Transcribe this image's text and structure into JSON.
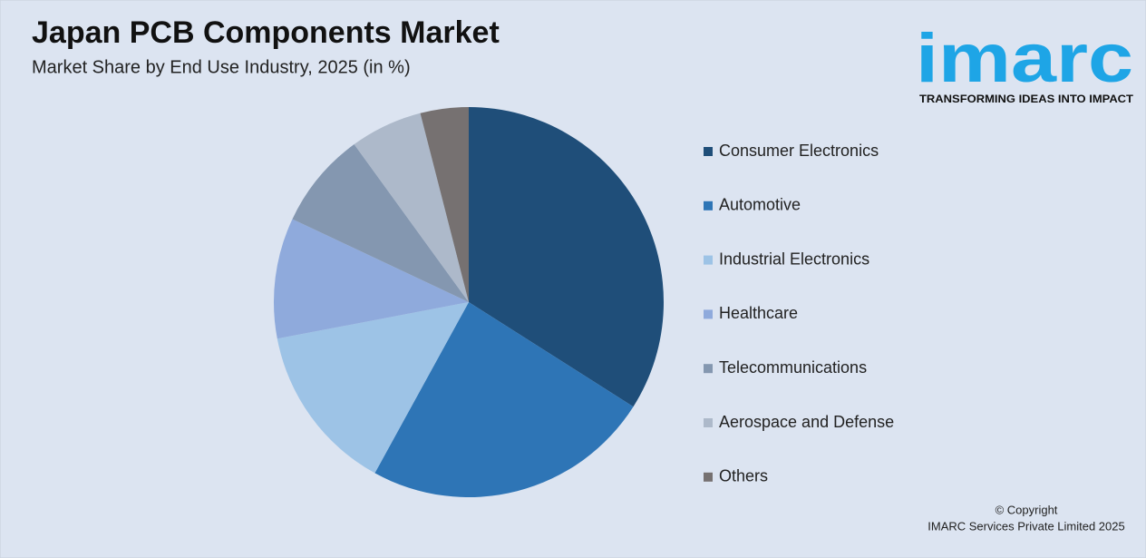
{
  "chart_data": {
    "type": "pie",
    "title": "Japan PCB Components Market",
    "subtitle": "Market Share by End Use Industry, 2025 (in %)",
    "categories": [
      "Consumer Electronics",
      "Automotive",
      "Industrial Electronics",
      "Healthcare",
      "Telecommunications",
      "Aerospace and Defense",
      "Others"
    ],
    "values": [
      34,
      24,
      14,
      10,
      8,
      6,
      4
    ],
    "colors": [
      "#1f4e79",
      "#2e75b6",
      "#9dc3e6",
      "#8faadc",
      "#8497b0",
      "#adb9ca",
      "#767171"
    ],
    "legend": "right"
  },
  "logo": {
    "name": "imarc",
    "tagline": "TRANSFORMING IDEAS INTO IMPACT"
  },
  "copyright": [
    "© Copyright",
    "IMARC Services Private Limited 2025"
  ]
}
